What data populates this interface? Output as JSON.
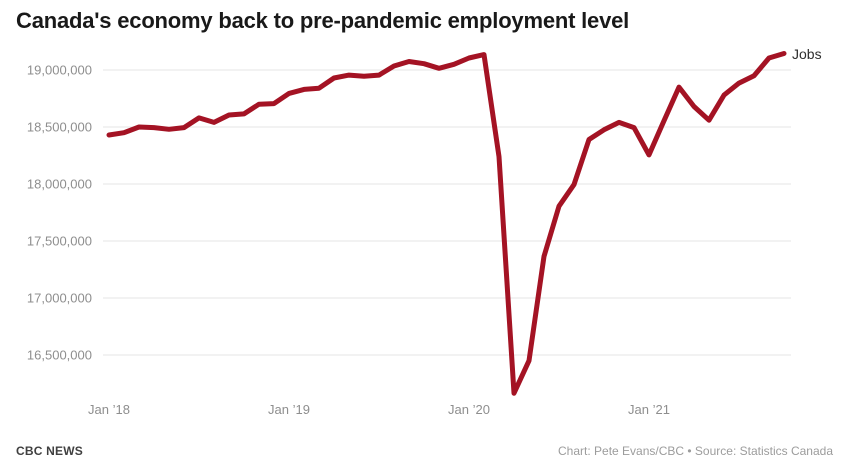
{
  "title": "Canada's economy back to pre-pandemic employment level",
  "series_label": "Jobs",
  "footer": {
    "brand": "CBC NEWS",
    "attribution": "Chart: Pete Evans/CBC • Source: Statistics Canada"
  },
  "colors": {
    "line": "#a41324",
    "grid": "#e6e6e6",
    "axis_text": "#8e8e8e",
    "title_text": "#191919",
    "series_label_text": "#2f2f2f",
    "brand_text": "#404040",
    "attribution_text": "#9c9c9c",
    "background": "#ffffff"
  },
  "chart_data": {
    "type": "line",
    "title": "Canada's economy back to pre-pandemic employment level",
    "series_name": "Jobs",
    "xlabel": "",
    "ylabel": "",
    "grid": "horizontal-only",
    "legend_position": "inline-right-of-line-end",
    "ylim": [
      16105000,
      19175000
    ],
    "y_ticks": [
      16500000,
      17000000,
      17500000,
      18000000,
      18500000,
      19000000
    ],
    "y_tick_labels": [
      "16,500,000",
      "17,000,000",
      "17,500,000",
      "18,000,000",
      "18,500,000",
      "19,000,000"
    ],
    "x_tick_labels": [
      "Jan ’18",
      "Jan ’19",
      "Jan ’20",
      "Jan ’21"
    ],
    "x_tick_month_index": [
      0,
      12,
      24,
      36
    ],
    "x": [
      "Jan 2018",
      "Feb 2018",
      "Mar 2018",
      "Apr 2018",
      "May 2018",
      "Jun 2018",
      "Jul 2018",
      "Aug 2018",
      "Sep 2018",
      "Oct 2018",
      "Nov 2018",
      "Dec 2018",
      "Jan 2019",
      "Feb 2019",
      "Mar 2019",
      "Apr 2019",
      "May 2019",
      "Jun 2019",
      "Jul 2019",
      "Aug 2019",
      "Sep 2019",
      "Oct 2019",
      "Nov 2019",
      "Dec 2019",
      "Jan 2020",
      "Feb 2020",
      "Mar 2020",
      "Apr 2020",
      "May 2020",
      "Jun 2020",
      "Jul 2020",
      "Aug 2020",
      "Sep 2020",
      "Oct 2020",
      "Nov 2020",
      "Dec 2020",
      "Jan 2021",
      "Feb 2021",
      "Mar 2021",
      "Apr 2021",
      "May 2021",
      "Jun 2021",
      "Jul 2021",
      "Aug 2021",
      "Sep 2021",
      "Oct 2021"
    ],
    "values": [
      18430000,
      18450000,
      18500000,
      18495000,
      18480000,
      18495000,
      18580000,
      18540000,
      18605000,
      18615000,
      18700000,
      18705000,
      18795000,
      18830000,
      18840000,
      18930000,
      18955000,
      18945000,
      18955000,
      19035000,
      19075000,
      19055000,
      19015000,
      19050000,
      19105000,
      19135000,
      18240000,
      16165000,
      16450000,
      17365000,
      17805000,
      17995000,
      18390000,
      18475000,
      18540000,
      18495000,
      18255000,
      18555000,
      18850000,
      18680000,
      18560000,
      18780000,
      18885000,
      18950000,
      19105000,
      19145000
    ]
  }
}
